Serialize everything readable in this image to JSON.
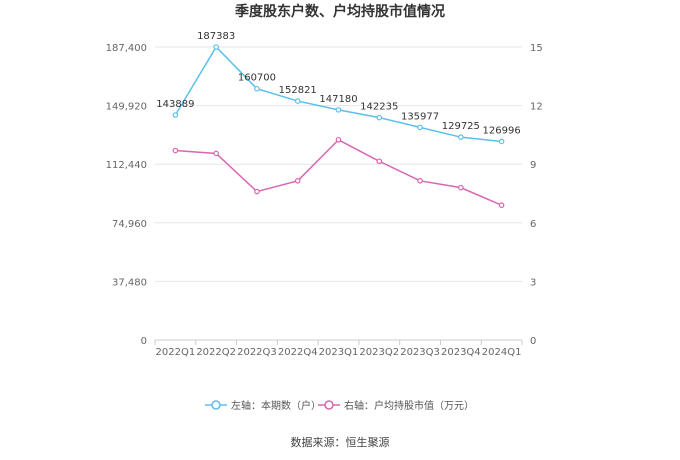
{
  "chart_data": {
    "type": "line",
    "title": "季度股东户数、户均持股市值情况",
    "categories": [
      "2022Q1",
      "2022Q2",
      "2022Q3",
      "2022Q4",
      "2023Q1",
      "2023Q2",
      "2023Q3",
      "2023Q4",
      "2024Q1"
    ],
    "y_left": {
      "ticks": [
        "0",
        "37,480",
        "74,960",
        "112,440",
        "149,920",
        "187,400"
      ],
      "ylim": [
        0,
        187400
      ]
    },
    "y_right": {
      "ticks": [
        "0",
        "3",
        "6",
        "9",
        "12",
        "15"
      ],
      "ylim": [
        0,
        15
      ]
    },
    "series": [
      {
        "name": "左轴：本期数（户）",
        "axis": "left",
        "color": "#5bc0eb",
        "values": [
          143889,
          187383,
          160700,
          152821,
          147180,
          142235,
          135977,
          129725,
          126996
        ],
        "labels": [
          "143889",
          "187383",
          "160700",
          "152821",
          "147180",
          "142235",
          "135977",
          "129725",
          "126996"
        ]
      },
      {
        "name": "右轴：户均持股市值（万元）",
        "axis": "right",
        "color": "#d966b0",
        "values": [
          9.7,
          9.55,
          7.6,
          8.15,
          10.25,
          9.15,
          8.15,
          7.8,
          6.9
        ]
      }
    ],
    "grid": true,
    "legend_position": "bottom"
  },
  "source": "数据来源：恒生聚源"
}
